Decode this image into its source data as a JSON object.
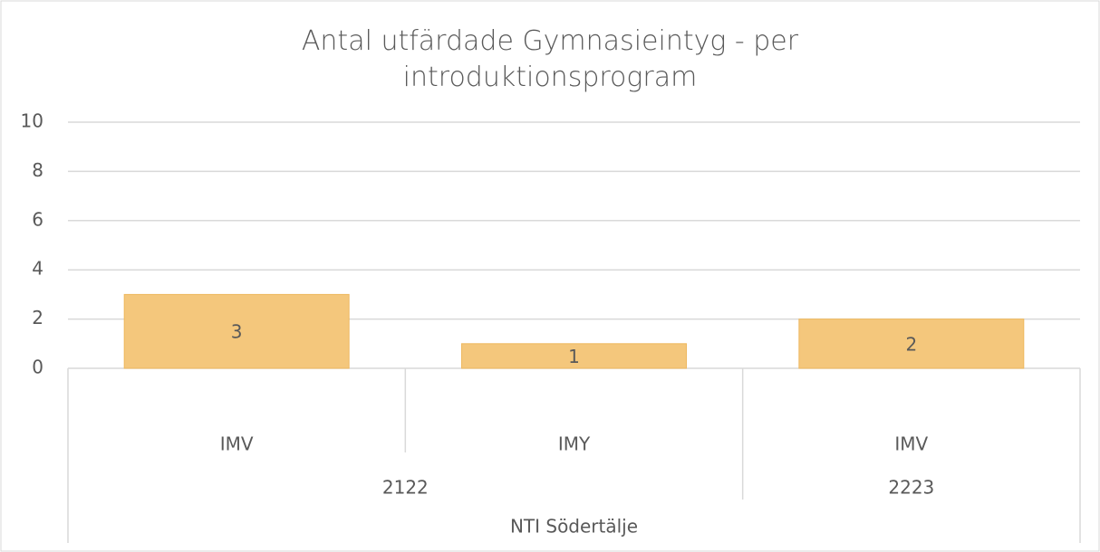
{
  "chart_data": {
    "type": "bar",
    "title": "Antal utfärdade Gymnasieintyg - per introduktionsprogram",
    "outer_category": "NTI Södertälje",
    "groups": [
      {
        "name": "2122",
        "categories": [
          "IMV",
          "IMY"
        ],
        "values": [
          3,
          1
        ]
      },
      {
        "name": "2223",
        "categories": [
          "IMV"
        ],
        "values": [
          2
        ]
      }
    ],
    "color": "#f4c77c",
    "ylim": [
      0,
      10
    ],
    "yticks": [
      0,
      2,
      4,
      6,
      8,
      10
    ],
    "grid": true
  }
}
